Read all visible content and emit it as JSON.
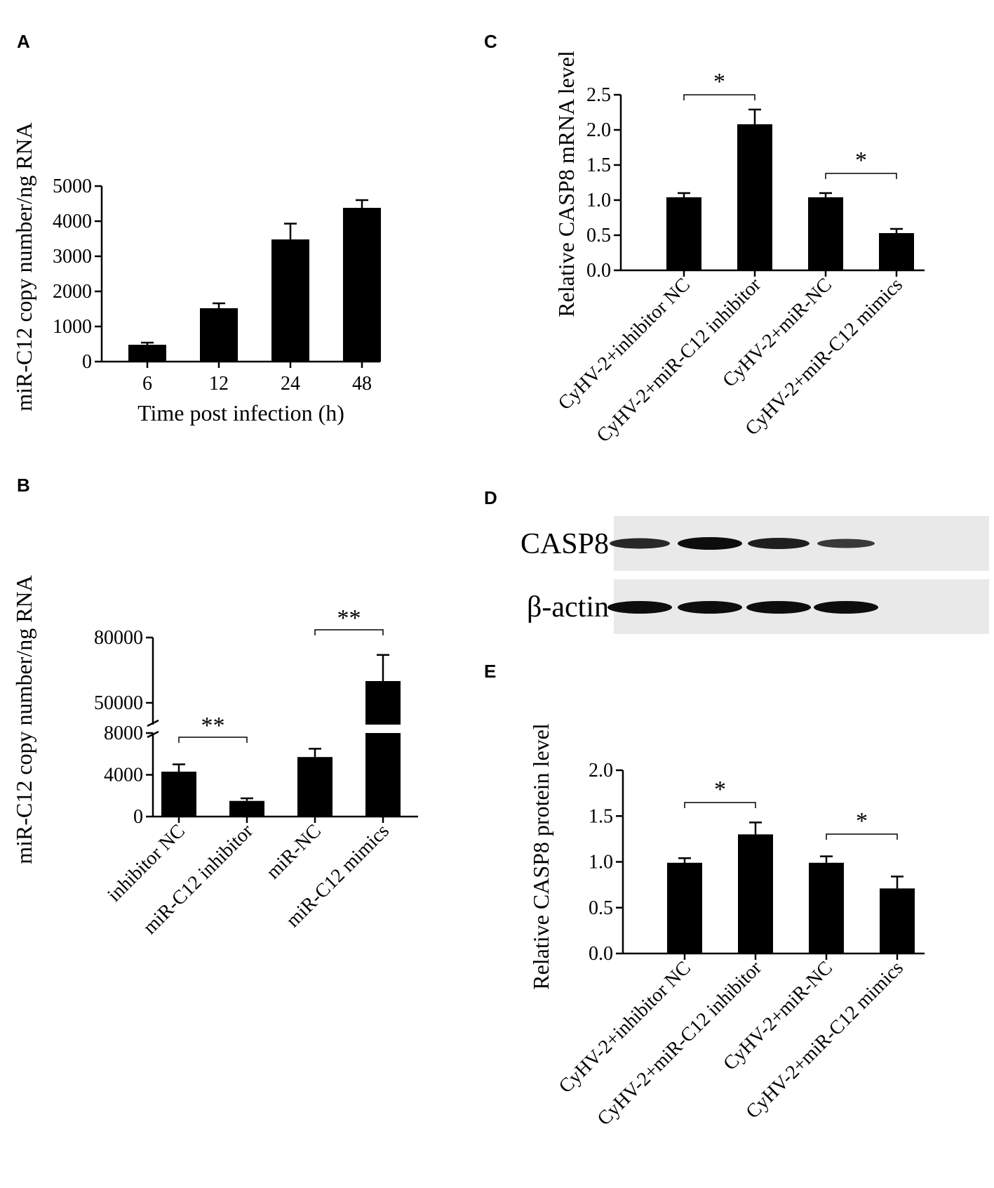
{
  "chart_data": [
    {
      "panel": "A",
      "type": "bar",
      "categories": [
        "6",
        "12",
        "24",
        "48"
      ],
      "values": [
        480,
        1520,
        3480,
        4380
      ],
      "errors": [
        60,
        140,
        450,
        220
      ],
      "xlabel": "Time post infection (h)",
      "ylabel": "miR-C12 copy number/ng RNA",
      "ylim": [
        0,
        5000
      ],
      "yticks": [
        "0",
        "1000",
        "2000",
        "3000",
        "4000",
        "5000"
      ]
    },
    {
      "panel": "B",
      "type": "bar",
      "categories": [
        "inhibitor NC",
        "miR-C12 inhibitor",
        "miR-NC",
        "miR-C12 mimics"
      ],
      "values": [
        4300,
        1500,
        5700,
        60000
      ],
      "errors": [
        700,
        250,
        800,
        12000
      ],
      "axis_break": true,
      "ylabel": "miR-C12 copy number/ng RNA",
      "yticks": [
        "0",
        "4000",
        "8000",
        "50000",
        "80000"
      ],
      "significance": [
        {
          "from": 0,
          "to": 1,
          "label": "**"
        },
        {
          "from": 2,
          "to": 3,
          "label": "**"
        }
      ]
    },
    {
      "panel": "C",
      "type": "bar",
      "categories": [
        "CyHV-2+inhibitor NC",
        "CyHV-2+miR-C12 inhibitor",
        "CyHV-2+miR-NC",
        "CyHV-2+miR-C12 mimics"
      ],
      "values": [
        1.04,
        2.08,
        1.04,
        0.53
      ],
      "errors": [
        0.06,
        0.21,
        0.06,
        0.06
      ],
      "ylabel": "Relative CASP8 mRNA level",
      "ylim": [
        0,
        2.5
      ],
      "yticks": [
        "0.0",
        "0.5",
        "1.0",
        "1.5",
        "2.0",
        "2.5"
      ],
      "significance": [
        {
          "from": 0,
          "to": 1,
          "label": "*"
        },
        {
          "from": 2,
          "to": 3,
          "label": "*"
        }
      ]
    },
    {
      "panel": "E",
      "type": "bar",
      "categories": [
        "CyHV-2+inhibitor NC",
        "CyHV-2+miR-C12 inhibitor",
        "CyHV-2+miR-NC",
        "CyHV-2+miR-C12 mimics"
      ],
      "values": [
        0.99,
        1.3,
        0.99,
        0.71
      ],
      "errors": [
        0.05,
        0.13,
        0.07,
        0.13
      ],
      "ylabel": "Relative CASP8 protein  level",
      "ylim": [
        0,
        2.0
      ],
      "yticks": [
        "0.0",
        "0.5",
        "1.0",
        "1.5",
        "2.0"
      ],
      "significance": [
        {
          "from": 0,
          "to": 1,
          "label": "*"
        },
        {
          "from": 2,
          "to": 3,
          "label": "*"
        }
      ]
    }
  ],
  "blot": {
    "panel": "D",
    "bands": [
      {
        "label": "CASP8",
        "intensities": [
          0.7,
          1.0,
          0.8,
          0.5
        ]
      },
      {
        "label": "β-actin",
        "intensities": [
          1.0,
          1.0,
          1.0,
          1.0
        ]
      }
    ]
  },
  "panel_letters": [
    "A",
    "B",
    "C",
    "D",
    "E"
  ]
}
